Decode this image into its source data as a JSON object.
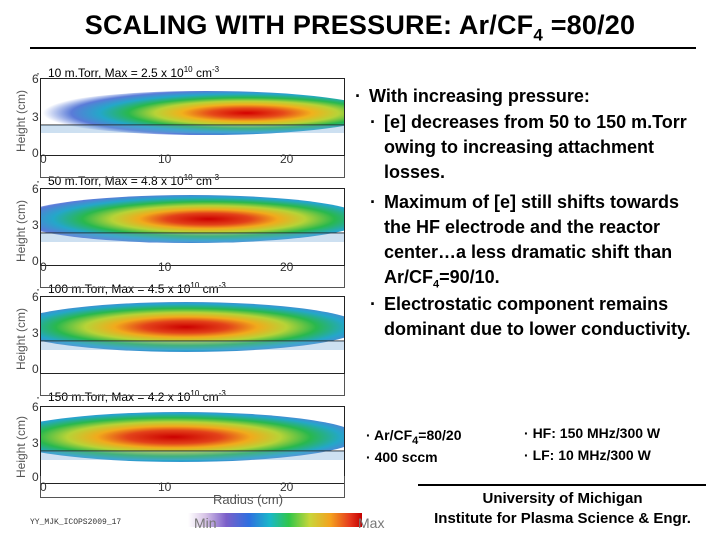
{
  "title": "SCALING WITH  PRESSURE: Ar/CF",
  "title_sub": "4",
  "title_end": " =80/20",
  "axes": {
    "ylabel": "Height (cm)",
    "xlabel": "Radius (cm)",
    "y_ticks": [
      "6",
      "3",
      "0"
    ],
    "x_ticks": [
      "0",
      "10",
      "20"
    ]
  },
  "panels": [
    {
      "label": "10 m.Torr, Max = 2.5 x 10",
      "exp": "10",
      "unit": " cm",
      "unit_exp": "-3"
    },
    {
      "label": "50 m.Torr, Max = 4.8 x 10",
      "exp": "10",
      "unit": " cm",
      "unit_exp": "-3"
    },
    {
      "label": "100 m.Torr, Max = 4.5 x 10",
      "exp": "10",
      "unit": " cm",
      "unit_exp": "-3"
    },
    {
      "label": "150 m.Torr, Max = 4.2 x 10",
      "exp": "10",
      "unit": " cm",
      "unit_exp": "-3"
    }
  ],
  "bullet_dot": "·",
  "main_point": "With increasing pressure:",
  "sub_points": {
    "p1": "[e] decreases from 50 to 150 m.Torr owing to increasing attachment losses.",
    "p2a": "Maximum of [e] still shifts towards the HF electrode and the reactor center…a less dramatic shift than Ar/CF",
    "p2sub": "4",
    "p2b": "=90/10.",
    "p3": "Electrostatic component remains dominant due to lower conductivity."
  },
  "conditions": {
    "gas_a": "Ar/CF",
    "gas_sub": "4",
    "gas_b": "=80/20",
    "flow": "400 sccm",
    "hf": "HF: 150 MHz/300 W",
    "lf": "LF: 10 MHz/300 W"
  },
  "university": "University of Michigan",
  "institute": "Institute for Plasma Science & Engr.",
  "footer_id": "YY_MJK_ICOPS2009_17",
  "colorbar": {
    "min": "Min",
    "max": "Max"
  }
}
